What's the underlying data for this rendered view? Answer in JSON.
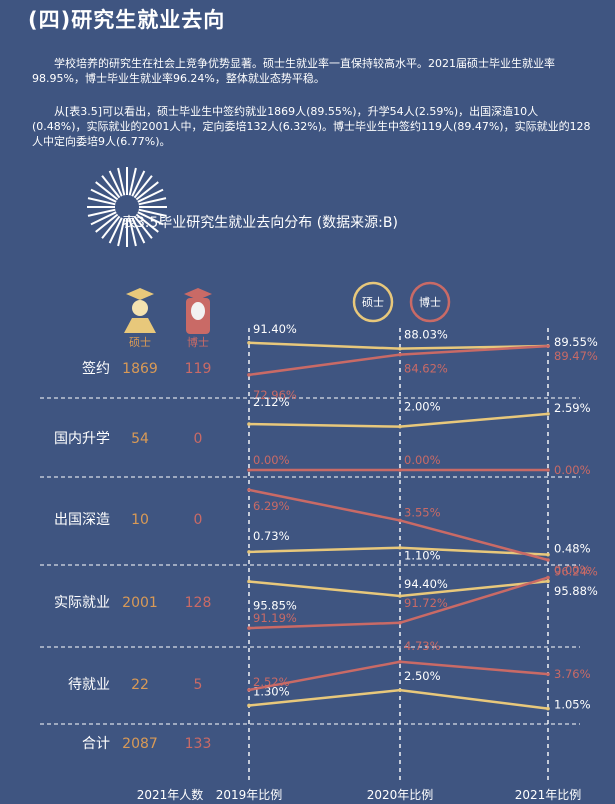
{
  "heading": "(四)研究生就业去向",
  "paragraphs": [
    "学校培养的研究生在社会上竞争优势显著。硕士生就业率一直保持较高水平。2021届硕士毕业生就业率98.95%，博士毕业生就业率96.24%，整体就业态势平稳。",
    "从[表3.5]可以看出，硕士毕业生中签约就业1869人(89.55%)，升学54人(2.59%)，出国深造10人(0.48%)，实际就业的2001人中，定向委培132人(6.32%)。博士毕业生中签约119人(89.47%)，实际就业的128人中定向委培9人(6.77%)。"
  ],
  "colors": {
    "background": "#3f5581",
    "master": "#e8c87b",
    "doctor": "#c96a66",
    "count_master": "#d99a56",
    "count_doctor": "#c96a66",
    "grid": "#ffffff"
  },
  "chart_data": {
    "type": "line",
    "title": "表3.5毕业研究生就业去向分布 (数据来源:B)",
    "legend": {
      "master": "硕士",
      "doctor": "博士",
      "placement": "top-right"
    },
    "head_labels": {
      "master": "硕士",
      "doctor": "博士"
    },
    "x": [
      "2019年比例",
      "2020年比例",
      "2021年比例"
    ],
    "count_column_label": "2021年人数",
    "rows": [
      {
        "label": "签约",
        "master_count": "1869",
        "doctor_count": "119",
        "master": [
          "91.40%",
          "88.03%",
          "89.55%"
        ],
        "doctor": [
          "72.96%",
          "84.62%",
          "89.47%"
        ]
      },
      {
        "label": "国内升学",
        "master_count": "54",
        "doctor_count": "0",
        "master": [
          "2.12%",
          "2.00%",
          "2.59%"
        ],
        "doctor": [
          "0.00%",
          "0.00%",
          "0.00%"
        ]
      },
      {
        "label": "出国深造",
        "master_count": "10",
        "doctor_count": "0",
        "master": [
          "0.73%",
          "1.10%",
          "0.48%"
        ],
        "doctor": [
          "6.29%",
          "3.55%",
          "0.00%"
        ]
      },
      {
        "label": "实际就业",
        "master_count": "2001",
        "doctor_count": "128",
        "master": [
          "95.85%",
          "94.40%",
          "95.88%"
        ],
        "doctor": [
          "91.19%",
          "91.72%",
          "96.24%"
        ]
      },
      {
        "label": "待就业",
        "master_count": "22",
        "doctor_count": "5",
        "master": [
          "1.30%",
          "2.50%",
          "1.05%"
        ],
        "doctor": [
          "2.52%",
          "4.73%",
          "3.76%"
        ]
      }
    ],
    "total": {
      "label": "合计",
      "master_count": "2087",
      "doctor_count": "133"
    }
  }
}
